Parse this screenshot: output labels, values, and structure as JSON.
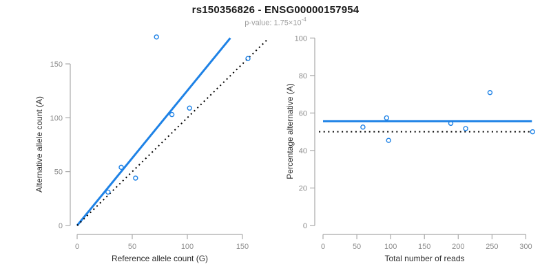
{
  "header": {
    "title": "rs150356826 - ENSG00000157954",
    "subtitle_prefix": "p-value: 1.75×10",
    "subtitle_exponent": "-4"
  },
  "colors": {
    "accent_blue": "#1E82E6",
    "dotted_black": "#000000",
    "axis_gray": "#A9A9A9",
    "tick_label_gray": "#8C8C8C"
  },
  "chart_data": [
    {
      "type": "scatter",
      "name": "allele-counts-panel",
      "xlabel": "Reference allele count (G)",
      "ylabel": "Alternative allele count (A)",
      "xticks": [
        0,
        50,
        100,
        150
      ],
      "yticks": [
        0,
        50,
        100,
        150
      ],
      "xlim": [
        0,
        172
      ],
      "ylim": [
        0,
        178
      ],
      "grid": false,
      "point_style": "open-circle",
      "points": [
        {
          "x": 28,
          "y": 31
        },
        {
          "x": 40,
          "y": 54
        },
        {
          "x": 53,
          "y": 44
        },
        {
          "x": 72,
          "y": 175
        },
        {
          "x": 86,
          "y": 103
        },
        {
          "x": 102,
          "y": 109
        },
        {
          "x": 155,
          "y": 155
        }
      ],
      "lines": [
        {
          "name": "fitted-proportion-line",
          "style": "solid",
          "color": "accent",
          "x1": 0,
          "y1": 0,
          "x2": 139,
          "y2": 174
        },
        {
          "name": "identity-line",
          "style": "dotted",
          "color": "black",
          "x1": 0,
          "y1": 0,
          "x2": 172,
          "y2": 172
        }
      ]
    },
    {
      "type": "scatter",
      "name": "percentage-panel",
      "xlabel": "Total number of reads",
      "ylabel": "Percentage alternative (A)",
      "xticks": [
        0,
        50,
        100,
        150,
        200,
        250,
        300
      ],
      "yticks": [
        0,
        20,
        40,
        60,
        80,
        100
      ],
      "xlim": [
        0,
        312
      ],
      "ylim": [
        0,
        100
      ],
      "grid": false,
      "point_style": "open-circle",
      "points": [
        {
          "x": 59,
          "y": 52.5
        },
        {
          "x": 94,
          "y": 57.4
        },
        {
          "x": 97,
          "y": 45.4
        },
        {
          "x": 189,
          "y": 54.5
        },
        {
          "x": 211,
          "y": 51.7
        },
        {
          "x": 247,
          "y": 70.9
        },
        {
          "x": 310,
          "y": 50
        }
      ],
      "lines": [
        {
          "name": "mean-percentage-line",
          "style": "solid",
          "color": "accent",
          "x1": 0,
          "y1": 55.6,
          "x2": 309,
          "y2": 55.6
        },
        {
          "name": "fifty-percent-line",
          "style": "dotted",
          "color": "black",
          "x1": -6,
          "y1": 50,
          "x2": 310,
          "y2": 50
        }
      ]
    }
  ]
}
